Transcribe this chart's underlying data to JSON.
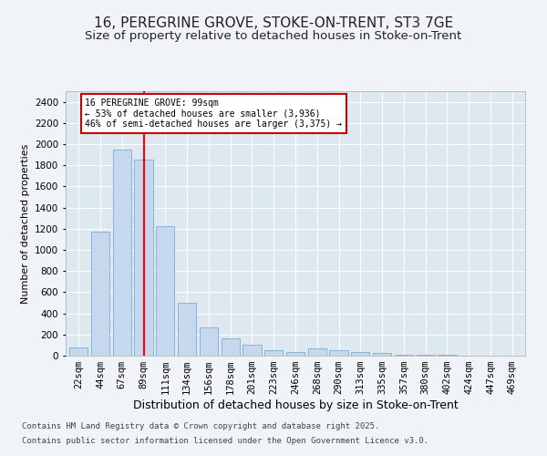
{
  "title1": "16, PEREGRINE GROVE, STOKE-ON-TRENT, ST3 7GE",
  "title2": "Size of property relative to detached houses in Stoke-on-Trent",
  "xlabel": "Distribution of detached houses by size in Stoke-on-Trent",
  "ylabel": "Number of detached properties",
  "categories": [
    "22sqm",
    "44sqm",
    "67sqm",
    "89sqm",
    "111sqm",
    "134sqm",
    "156sqm",
    "178sqm",
    "201sqm",
    "223sqm",
    "246sqm",
    "268sqm",
    "290sqm",
    "313sqm",
    "335sqm",
    "357sqm",
    "380sqm",
    "402sqm",
    "424sqm",
    "447sqm",
    "469sqm"
  ],
  "values": [
    75,
    1175,
    1950,
    1850,
    1225,
    500,
    265,
    165,
    100,
    55,
    35,
    65,
    50,
    35,
    25,
    10,
    5,
    5,
    3,
    2,
    2
  ],
  "bar_color": "#c5d8ed",
  "bar_edge_color": "#7aadcf",
  "red_line_index": 3,
  "annotation_text": "16 PEREGRINE GROVE: 99sqm\n← 53% of detached houses are smaller (3,936)\n46% of semi-detached houses are larger (3,375) →",
  "annotation_box_color": "#ffffff",
  "annotation_box_edge": "#cc0000",
  "ylim": [
    0,
    2500
  ],
  "yticks": [
    0,
    200,
    400,
    600,
    800,
    1000,
    1200,
    1400,
    1600,
    1800,
    2000,
    2200,
    2400
  ],
  "bg_color": "#dde8f0",
  "grid_color": "#ffffff",
  "fig_bg_color": "#f0f4f8",
  "footer1": "Contains HM Land Registry data © Crown copyright and database right 2025.",
  "footer2": "Contains public sector information licensed under the Open Government Licence v3.0.",
  "title1_fontsize": 11,
  "title2_fontsize": 9.5,
  "xlabel_fontsize": 9,
  "ylabel_fontsize": 8,
  "tick_fontsize": 7.5,
  "footer_fontsize": 6.5
}
